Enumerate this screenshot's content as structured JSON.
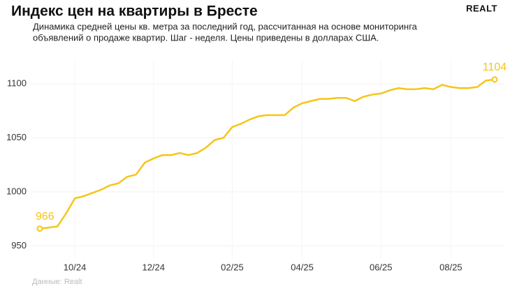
{
  "chart_data": {
    "type": "line",
    "title": "Индекс цен на квартиры в Бресте",
    "subtitle": [
      "Динамика средней цены кв. метра за последний год, рассчитанная на основе мониторинга",
      "объявлений о продаже квартир. Шаг - неделя. Цены приведены в долларах США."
    ],
    "logo": "REALT",
    "source": "Данные: Realt",
    "color": "#f5c518",
    "categories": [
      null,
      null,
      null,
      null,
      "10/24",
      null,
      null,
      null,
      null,
      null,
      null,
      null,
      null,
      "12/24",
      null,
      null,
      null,
      null,
      null,
      null,
      null,
      null,
      "02/25",
      null,
      null,
      null,
      null,
      null,
      null,
      null,
      "04/25",
      null,
      null,
      null,
      null,
      null,
      null,
      null,
      null,
      "06/25",
      null,
      null,
      null,
      null,
      null,
      null,
      null,
      "08/25",
      null,
      null,
      null,
      null,
      null
    ],
    "values": [
      966,
      967,
      968,
      980,
      994,
      996,
      999,
      1002,
      1006,
      1008,
      1014,
      1016,
      1027,
      1031,
      1034,
      1034,
      1036,
      1034,
      1036,
      1041,
      1048,
      1050,
      1060,
      1063,
      1067,
      1070,
      1071,
      1071,
      1071,
      1078,
      1082,
      1084,
      1086,
      1086,
      1087,
      1087,
      1084,
      1088,
      1090,
      1091,
      1094,
      1096,
      1095,
      1095,
      1096,
      1095,
      1099,
      1097,
      1096,
      1096,
      1097,
      1103,
      1104
    ],
    "ylim": [
      938,
      1122
    ],
    "yticks": [
      950,
      1000,
      1050,
      1100
    ],
    "grid": true
  }
}
